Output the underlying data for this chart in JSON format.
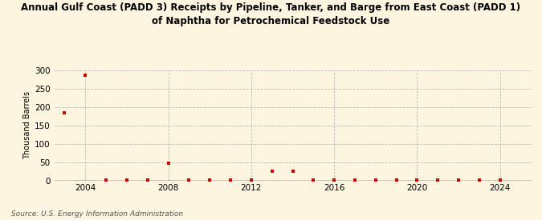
{
  "title": "Annual Gulf Coast (PADD 3) Receipts by Pipeline, Tanker, and Barge from East Coast (PADD 1)\nof Naphtha for Petrochemical Feedstock Use",
  "ylabel": "Thousand Barrels",
  "source": "Source: U.S. Energy Information Administration",
  "background_color": "#fdf5e0",
  "plot_bg_color": "#fdf5e0",
  "marker_color": "#cc0000",
  "marker_size": 3.5,
  "xlim": [
    2002.5,
    2025.5
  ],
  "ylim": [
    0,
    300
  ],
  "yticks": [
    0,
    50,
    100,
    150,
    200,
    250,
    300
  ],
  "xticks": [
    2004,
    2008,
    2012,
    2016,
    2020,
    2024
  ],
  "grid_color": "#bbbbbb",
  "data": {
    "years": [
      2003,
      2004,
      2005,
      2006,
      2007,
      2008,
      2009,
      2010,
      2011,
      2012,
      2013,
      2014,
      2015,
      2016,
      2017,
      2018,
      2019,
      2020,
      2021,
      2022,
      2023,
      2024
    ],
    "values": [
      185,
      288,
      2,
      2,
      2,
      48,
      2,
      2,
      2,
      2,
      25,
      25,
      2,
      2,
      2,
      2,
      2,
      2,
      2,
      2,
      2,
      2
    ]
  }
}
